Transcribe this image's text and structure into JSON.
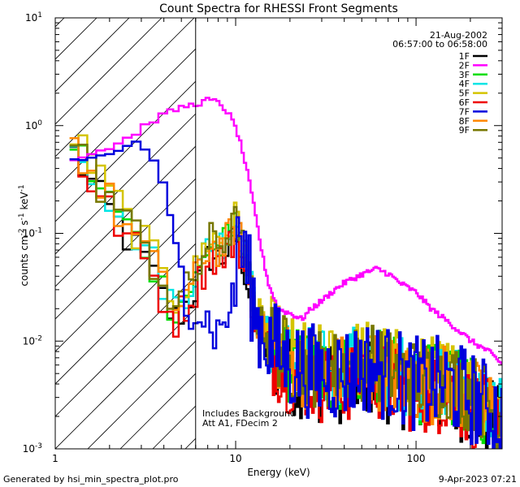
{
  "chart_data": {
    "type": "line",
    "title": "Count Spectra for RHESSI Front Segments",
    "xlabel": "Energy (keV)",
    "ylabel_parts": [
      "counts cm",
      "-2",
      " s",
      "-1",
      " keV",
      "-1"
    ],
    "x_scale": "log",
    "y_scale": "log",
    "xlim": [
      1,
      300
    ],
    "ylim": [
      0.001,
      10
    ],
    "x_ticks": [
      {
        "value": 1,
        "label": "1"
      },
      {
        "value": 10,
        "label": "10"
      },
      {
        "value": 100,
        "label": "100"
      }
    ],
    "y_ticks": [
      {
        "value": 0.001,
        "base": "10",
        "exp": "-3"
      },
      {
        "value": 0.01,
        "base": "10",
        "exp": "-2"
      },
      {
        "value": 0.1,
        "base": "10",
        "exp": "-1"
      },
      {
        "value": 1,
        "base": "10",
        "exp": "0"
      },
      {
        "value": 10,
        "base": "10",
        "exp": "1"
      }
    ],
    "date": "21-Aug-2002",
    "time_range": "06:57:00 to 06:58:00",
    "hatched_region_max_energy": 6,
    "annotations": [
      "Includes Background",
      "Att A1, FDecim 2"
    ],
    "legend_position": "top-right",
    "series": [
      {
        "name": "1F",
        "color": "#000000"
      },
      {
        "name": "2F",
        "color": "#ff00ff"
      },
      {
        "name": "3F",
        "color": "#00dd00"
      },
      {
        "name": "4F",
        "color": "#00e5e5"
      },
      {
        "name": "5F",
        "color": "#d4c400"
      },
      {
        "name": "6F",
        "color": "#ee0000"
      },
      {
        "name": "7F",
        "color": "#0000dd"
      },
      {
        "name": "8F",
        "color": "#ff8800"
      },
      {
        "name": "9F",
        "color": "#777700"
      }
    ],
    "magenta_2F_points": [
      [
        1.2,
        0.5
      ],
      [
        1.5,
        0.55
      ],
      [
        2.0,
        0.65
      ],
      [
        2.5,
        0.8
      ],
      [
        3.0,
        1.0
      ],
      [
        3.5,
        1.2
      ],
      [
        4.0,
        1.3
      ],
      [
        5.0,
        1.5
      ],
      [
        6.0,
        1.6
      ],
      [
        7.0,
        1.75
      ],
      [
        8.0,
        1.6
      ],
      [
        9.0,
        1.3
      ],
      [
        10.0,
        0.9
      ],
      [
        11.0,
        0.5
      ],
      [
        12.0,
        0.25
      ],
      [
        13.0,
        0.12
      ],
      [
        14.0,
        0.06
      ],
      [
        15.0,
        0.035
      ],
      [
        17.0,
        0.02
      ],
      [
        20.0,
        0.018
      ],
      [
        23.0,
        0.016
      ],
      [
        26.0,
        0.02
      ],
      [
        30.0,
        0.024
      ],
      [
        35.0,
        0.03
      ],
      [
        40.0,
        0.035
      ],
      [
        50.0,
        0.042
      ],
      [
        60.0,
        0.047
      ],
      [
        70.0,
        0.042
      ],
      [
        80.0,
        0.035
      ],
      [
        100.0,
        0.028
      ],
      [
        120.0,
        0.02
      ],
      [
        150.0,
        0.015
      ],
      [
        200.0,
        0.01
      ],
      [
        250.0,
        0.008
      ],
      [
        300.0,
        0.006
      ]
    ],
    "blue_7F_points": [
      [
        1.2,
        0.48
      ],
      [
        1.5,
        0.5
      ],
      [
        2.0,
        0.55
      ],
      [
        2.3,
        0.65
      ],
      [
        2.6,
        0.7
      ],
      [
        3.0,
        0.6
      ],
      [
        3.5,
        0.4
      ],
      [
        4.0,
        0.2
      ],
      [
        4.5,
        0.08
      ],
      [
        5.0,
        0.04
      ],
      [
        5.5,
        0.025
      ],
      [
        6.0,
        0.02
      ],
      [
        7.0,
        0.015
      ],
      [
        8.0,
        0.012
      ],
      [
        9.0,
        0.02
      ],
      [
        10.0,
        0.03
      ]
    ]
  },
  "footer": {
    "left": "Generated by hsi_min_spectra_plot.pro",
    "right": "9-Apr-2023 07:21"
  }
}
